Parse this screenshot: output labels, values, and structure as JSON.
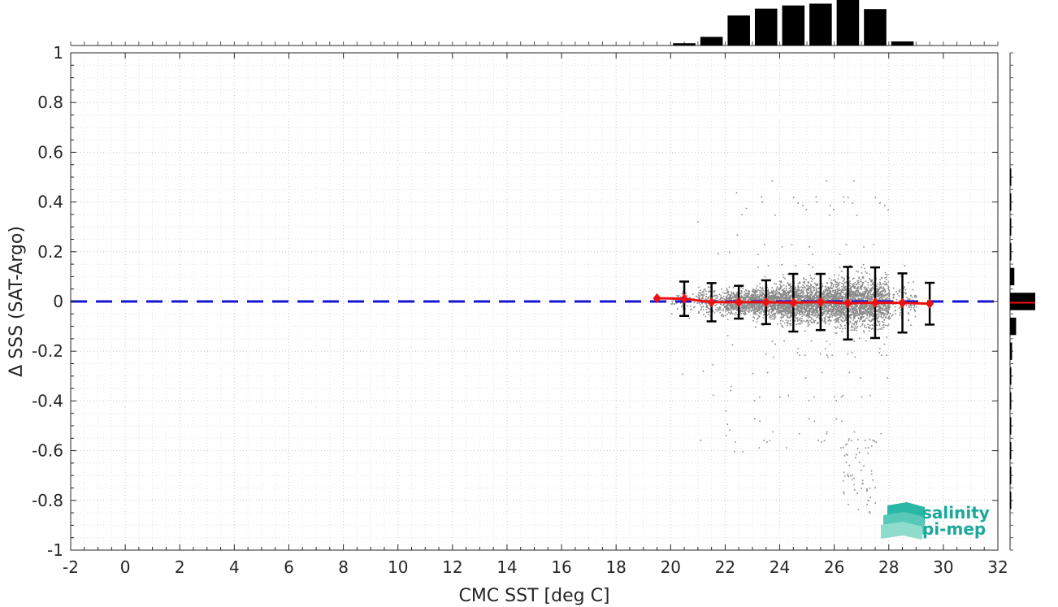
{
  "chart_data": {
    "type": "scatter",
    "xlabel": "CMC SST [deg C]",
    "ylabel": "Δ SSS (SAT-Argo)",
    "xlim": [
      -2,
      32
    ],
    "ylim": [
      -1,
      1
    ],
    "xticks": [
      -2,
      0,
      2,
      4,
      6,
      8,
      10,
      12,
      14,
      16,
      18,
      20,
      22,
      24,
      26,
      28,
      30,
      32
    ],
    "yticks": [
      -1,
      -0.8,
      -0.6,
      -0.4,
      -0.2,
      0,
      0.2,
      0.4,
      0.6,
      0.8,
      1
    ],
    "ytick_labels": [
      "-1",
      "-0.8",
      "-0.6",
      "-0.4",
      "-0.2",
      "0",
      "0.2",
      "0.4",
      "0.6",
      "0.8",
      "1"
    ],
    "grid": true,
    "reference_line": {
      "y": 0,
      "style": "dashed",
      "color": "#1414d2"
    },
    "binned_mean": {
      "color": "#ee1111",
      "x": [
        19.5,
        20.5,
        21.5,
        22.5,
        23.5,
        24.5,
        25.5,
        26.5,
        27.5,
        28.5,
        29.5
      ],
      "y": [
        0.013,
        0.011,
        -0.003,
        -0.003,
        -0.003,
        -0.005,
        -0.002,
        -0.007,
        -0.005,
        -0.006,
        -0.009
      ],
      "std": [
        0.0,
        0.069,
        0.077,
        0.066,
        0.088,
        0.116,
        0.113,
        0.146,
        0.142,
        0.119,
        0.084
      ]
    },
    "scatter_color": "#8a8a8a",
    "scatter_region": {
      "x_range": [
        19.6,
        29.6
      ],
      "typical_y_range": [
        -0.35,
        0.35
      ],
      "extreme_y_range": [
        -0.86,
        0.57
      ]
    },
    "top_histogram": {
      "bins": [
        20.5,
        21.5,
        22.5,
        23.5,
        24.5,
        25.5,
        26.5,
        27.5,
        28.5
      ],
      "counts": [
        0.05,
        0.19,
        0.66,
        0.81,
        0.88,
        0.92,
        1.0,
        0.8,
        0.09
      ]
    },
    "right_histogram": {
      "bins": [
        0.5,
        0.4,
        0.3,
        0.2,
        0.1,
        0.0,
        -0.1,
        -0.2,
        -0.3,
        -0.4,
        -0.5,
        -0.6,
        -0.7,
        -0.8
      ],
      "counts": [
        0.02,
        0.04,
        0.04,
        0.05,
        0.17,
        1.0,
        0.24,
        0.08,
        0.05,
        0.03,
        0.03,
        0.02,
        0.02,
        0.02
      ]
    }
  },
  "logo": {
    "line1": "salinity",
    "line2": "pi-mep",
    "color": "#1aa89a"
  }
}
